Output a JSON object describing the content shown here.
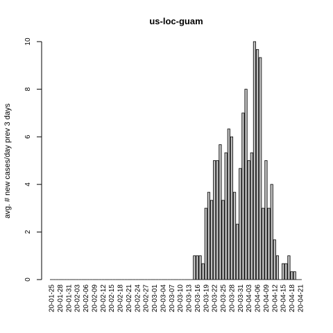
{
  "chart_data": {
    "type": "bar",
    "title": "us-loc-guam",
    "xlabel": "",
    "ylabel": "avg. # new cases/day prev  3  days",
    "ylim": [
      0,
      10
    ],
    "yticks": [
      0,
      2,
      4,
      6,
      8,
      10
    ],
    "categories": [
      "20-01-25",
      "20-01-26",
      "20-01-27",
      "20-01-28",
      "20-01-29",
      "20-01-30",
      "20-01-31",
      "20-02-01",
      "20-02-02",
      "20-02-03",
      "20-02-04",
      "20-02-05",
      "20-02-06",
      "20-02-07",
      "20-02-08",
      "20-02-09",
      "20-02-10",
      "20-02-11",
      "20-02-12",
      "20-02-13",
      "20-02-14",
      "20-02-15",
      "20-02-16",
      "20-02-17",
      "20-02-18",
      "20-02-19",
      "20-02-20",
      "20-02-21",
      "20-02-22",
      "20-02-23",
      "20-02-24",
      "20-02-25",
      "20-02-26",
      "20-02-27",
      "20-02-28",
      "20-02-29",
      "20-03-01",
      "20-03-02",
      "20-03-03",
      "20-03-04",
      "20-03-05",
      "20-03-06",
      "20-03-07",
      "20-03-08",
      "20-03-09",
      "20-03-10",
      "20-03-11",
      "20-03-12",
      "20-03-13",
      "20-03-14",
      "20-03-15",
      "20-03-16",
      "20-03-17",
      "20-03-18",
      "20-03-19",
      "20-03-20",
      "20-03-21",
      "20-03-22",
      "20-03-23",
      "20-03-24",
      "20-03-25",
      "20-03-26",
      "20-03-27",
      "20-03-28",
      "20-03-29",
      "20-03-30",
      "20-03-31",
      "20-04-01",
      "20-04-02",
      "20-04-03",
      "20-04-04",
      "20-04-05",
      "20-04-06",
      "20-04-07",
      "20-04-08",
      "20-04-09",
      "20-04-10",
      "20-04-11",
      "20-04-12",
      "20-04-13",
      "20-04-14",
      "20-04-15",
      "20-04-16",
      "20-04-17",
      "20-04-18",
      "20-04-19",
      "20-04-20",
      "20-04-21"
    ],
    "tick_labels": [
      "20-01-25",
      "20-01-28",
      "20-01-31",
      "20-02-03",
      "20-02-06",
      "20-02-09",
      "20-02-12",
      "20-02-15",
      "20-02-18",
      "20-02-21",
      "20-02-24",
      "20-02-27",
      "20-03-01",
      "20-03-04",
      "20-03-07",
      "20-03-10",
      "20-03-13",
      "20-03-16",
      "20-03-19",
      "20-03-22",
      "20-03-25",
      "20-03-28",
      "20-03-31",
      "20-04-03",
      "20-04-06",
      "20-04-09",
      "20-04-12",
      "20-04-15",
      "20-04-18",
      "20-04-21"
    ],
    "values": [
      0,
      0,
      0,
      0,
      0,
      0,
      0,
      0,
      0,
      0,
      0,
      0,
      0,
      0,
      0,
      0,
      0,
      0,
      0,
      0,
      0,
      0,
      0,
      0,
      0,
      0,
      0,
      0,
      0,
      0,
      0,
      0,
      0,
      0,
      0,
      0,
      0,
      0,
      0,
      0,
      0,
      0,
      0,
      0,
      0,
      0,
      0,
      0,
      0,
      0,
      1,
      1,
      1,
      0.67,
      3,
      3.67,
      3.33,
      5,
      5,
      5.67,
      3.33,
      5.33,
      6.33,
      6,
      3.67,
      2.33,
      4.67,
      7,
      8,
      5,
      5.33,
      10,
      9.67,
      9.33,
      3,
      5,
      3,
      4,
      1.67,
      1,
      0,
      0.67,
      0.67,
      1,
      0.33,
      0.33,
      0,
      0
    ],
    "grid": false,
    "bar_color": "#bebebe"
  }
}
